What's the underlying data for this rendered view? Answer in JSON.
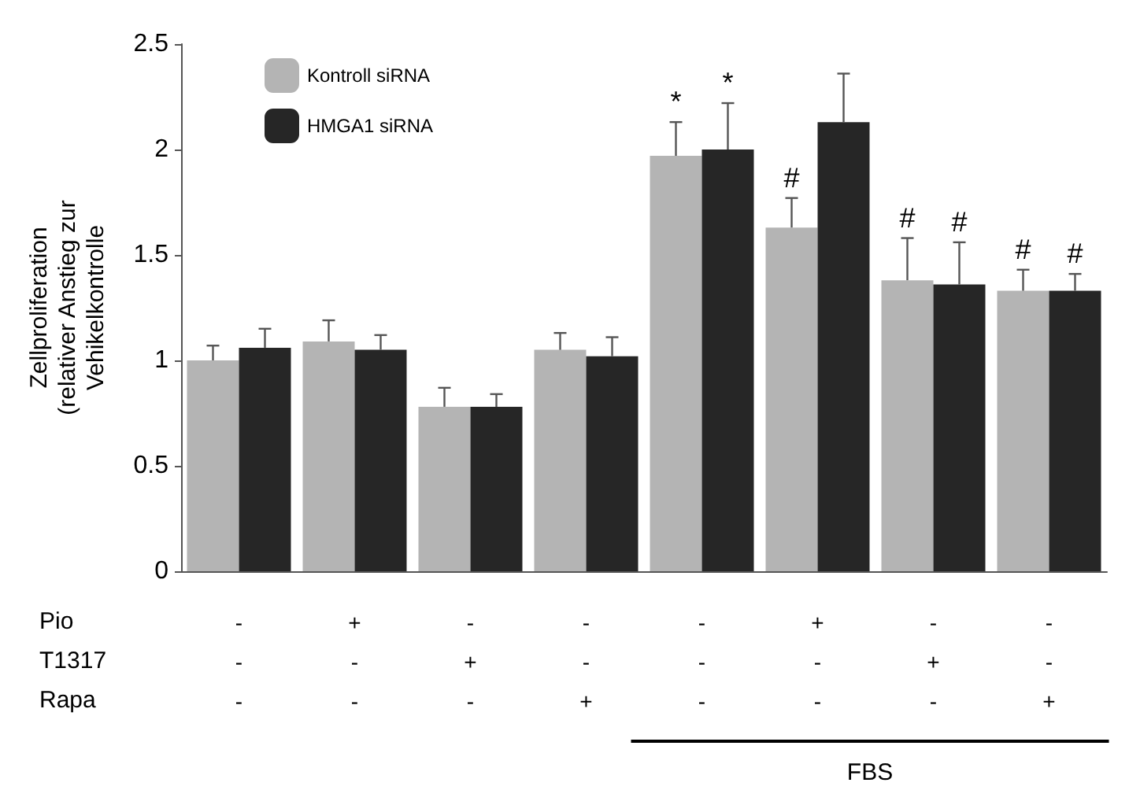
{
  "chart_data": {
    "type": "bar",
    "ylabel": "Zellproliferation\n(relativer Anstieg zur\nVehikelkontrolle",
    "categories": [
      "-\n-\n-",
      "+\n-\n-",
      "-\n+\n-",
      "-\n-\n+",
      "-\n-\n-",
      "+\n-\n-",
      "-\n+\n-",
      "-\n-\n+"
    ],
    "series": [
      {
        "name": "Kontroll siRNA",
        "color": "#b4b4b4",
        "values": [
          1.0,
          1.09,
          0.78,
          1.05,
          1.97,
          1.63,
          1.38,
          1.33
        ],
        "errors": [
          [
            1.0,
            1.07
          ],
          [
            1.09,
            1.19
          ],
          [
            0.78,
            0.87
          ],
          [
            1.05,
            1.13
          ],
          [
            1.97,
            2.13
          ],
          [
            1.63,
            1.77
          ],
          [
            1.38,
            1.58
          ],
          [
            1.33,
            1.43
          ]
        ],
        "value_labels": [
          null,
          null,
          null,
          null,
          "*",
          "#",
          "#",
          "#"
        ]
      },
      {
        "name": "HMGA1 siRNA",
        "color": "#262626",
        "values": [
          1.06,
          1.05,
          0.78,
          1.02,
          2.0,
          2.13,
          1.36,
          1.33
        ],
        "errors": [
          [
            1.06,
            1.15
          ],
          [
            1.05,
            1.12
          ],
          [
            0.78,
            0.84
          ],
          [
            1.02,
            1.11
          ],
          [
            2.0,
            2.22
          ],
          [
            2.13,
            2.36
          ],
          [
            1.36,
            1.56
          ],
          [
            1.33,
            1.41
          ]
        ],
        "value_labels": [
          null,
          null,
          null,
          null,
          "*",
          null,
          "#",
          "#"
        ]
      }
    ],
    "ylim": [
      0,
      2.5
    ],
    "yticks": [
      0,
      0.5,
      1,
      1.5,
      2,
      2.5
    ],
    "annotations": [
      "Pio",
      "T1317",
      "Rapa",
      "FBS"
    ],
    "legend": "top left",
    "grid": false
  }
}
